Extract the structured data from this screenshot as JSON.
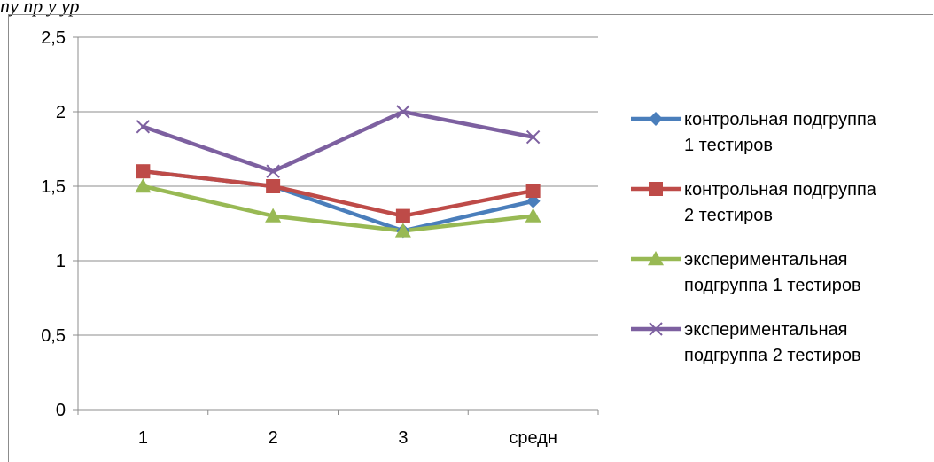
{
  "header": {
    "cut_text": "пу пр         у ур"
  },
  "chart_data": {
    "type": "line",
    "title": "",
    "xlabel": "",
    "ylabel": "",
    "categories": [
      "1",
      "2",
      "3",
      "средн"
    ],
    "ylim": [
      0,
      2.5
    ],
    "yticks": [
      0,
      0.5,
      1,
      1.5,
      2,
      2.5
    ],
    "ytick_labels": [
      "0",
      "0,5",
      "1",
      "1,5",
      "2",
      "2,5"
    ],
    "grid": "horizontal",
    "legend_position": "right",
    "series": [
      {
        "name": "контрольная подгруппа 1 тестиров",
        "legend_lines": [
          "контрольная подгруппа",
          "1 тестиров"
        ],
        "values": [
          1.6,
          1.5,
          1.2,
          1.4
        ],
        "color": "#4a7ebb",
        "marker": "diamond"
      },
      {
        "name": "контрольная подгруппа 2 тестиров",
        "legend_lines": [
          "контрольная подгруппа",
          "2 тестиров"
        ],
        "values": [
          1.6,
          1.5,
          1.3,
          1.47
        ],
        "color": "#be4b48",
        "marker": "square"
      },
      {
        "name": "экспериментальная подгруппа 1 тестиров",
        "legend_lines": [
          "экспериментальная",
          "подгруппа 1 тестиров"
        ],
        "values": [
          1.5,
          1.3,
          1.2,
          1.3
        ],
        "color": "#98b954",
        "marker": "triangle"
      },
      {
        "name": "экспериментальная подгруппа 2 тестиров",
        "legend_lines": [
          "экспериментальная",
          "подгруппа 2 тестиров"
        ],
        "values": [
          1.9,
          1.6,
          2.0,
          1.83
        ],
        "color": "#7d60a0",
        "marker": "x"
      }
    ]
  }
}
